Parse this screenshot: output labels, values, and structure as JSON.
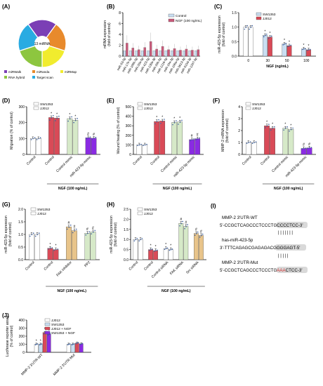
{
  "colors": {
    "blue": "#c9def2",
    "red": "#d94a57",
    "green": "#d6e9c8",
    "purple": "#8a2be2",
    "pink": "#c95a7a",
    "axis": "#000000",
    "dot": "#3a5fa0"
  },
  "chart_data": [
    {
      "panel": "A",
      "type": "pie",
      "title": "(A)",
      "center_label": "13 miRNA",
      "slices": [
        {
          "name": "miRWalk",
          "value": 1,
          "color": "#7b3fb5"
        },
        {
          "name": "miRanda",
          "value": 1,
          "color": "#e88a2c"
        },
        {
          "name": "miRMap",
          "value": 1,
          "color": "#f1ec2e"
        },
        {
          "name": "RNA hybrid",
          "value": 1,
          "color": "#8dc63f"
        },
        {
          "name": "Target scan",
          "value": 1,
          "color": "#29abe2"
        }
      ]
    },
    {
      "panel": "B",
      "type": "bar",
      "title": "(B)",
      "ylabel": "mRNA expression\n(fold of control)",
      "ylim": [
        0,
        8
      ],
      "yticks": [
        0,
        2,
        4,
        6,
        8
      ],
      "categories": [
        "miR-93-5p",
        "miR-17b-5p",
        "miR-106b-5p",
        "miR-20a-5p",
        "miR-423-5p",
        "miR-130a-3p",
        "miR-20b-5p",
        "miR-1216-5p",
        "miR-19a-3p",
        "miR-106a-5p",
        "miR-3613-3p",
        "miR-519d-3p",
        "miR-1297-5p"
      ],
      "series": [
        {
          "name": "Control",
          "values": [
            1,
            1,
            1,
            1,
            1,
            1,
            1,
            1,
            1,
            1,
            1,
            1,
            1
          ]
        },
        {
          "name": "NGF (100 ng/mL)",
          "values": [
            2.4,
            1.5,
            1.2,
            1.6,
            2.7,
            1.3,
            1.8,
            1.2,
            1.4,
            1.1,
            1.3,
            1.1,
            1.2
          ]
        }
      ]
    },
    {
      "panel": "C",
      "type": "bar",
      "title": "(C)",
      "ylabel": "miR-423-5p expression\n(fold of control)",
      "xlabel": "NGF (ng/mL)",
      "ylim": [
        0,
        1.5
      ],
      "yticks": [
        0.0,
        0.5,
        1.0,
        1.5
      ],
      "categories": [
        "0",
        "30",
        "50",
        "100"
      ],
      "series": [
        {
          "name": "SW1353",
          "values": [
            1.0,
            0.72,
            0.42,
            0.25
          ]
        },
        {
          "name": "JJ012",
          "values": [
            1.0,
            0.66,
            0.36,
            0.22
          ]
        }
      ],
      "significance": [
        "",
        "*",
        "*",
        "*"
      ]
    },
    {
      "panel": "D",
      "type": "bar",
      "title": "(D)",
      "ylabel": "Migration (% of control)",
      "xlabel": "NGF (100 ng/mL)",
      "ylim": [
        0,
        300
      ],
      "yticks": [
        0,
        100,
        200,
        300
      ],
      "categories": [
        "Control",
        "Control",
        "Control mimic",
        "miR-423-5p mimic"
      ],
      "series": [
        {
          "name": "SW1353",
          "values": [
            100,
            232,
            225,
            105
          ]
        },
        {
          "name": "JJ012",
          "values": [
            100,
            228,
            215,
            102
          ]
        }
      ],
      "significance": [
        "",
        "*",
        "*",
        "#"
      ]
    },
    {
      "panel": "E",
      "type": "bar",
      "title": "(E)",
      "ylabel": "Wound healing (% of control)",
      "xlabel": "NGF (100 ng/mL)",
      "ylim": [
        0,
        500
      ],
      "yticks": [
        0,
        100,
        200,
        300,
        400,
        500
      ],
      "categories": [
        "Control",
        "Control",
        "Control mimic",
        "miR-423-5p mimic"
      ],
      "series": [
        {
          "name": "SW1353",
          "values": [
            100,
            345,
            335,
            155
          ]
        },
        {
          "name": "JJ012",
          "values": [
            100,
            350,
            340,
            165
          ]
        }
      ],
      "significance": [
        "",
        "*",
        "*",
        "#"
      ]
    },
    {
      "panel": "F",
      "type": "bar",
      "title": "(F)",
      "ylabel": "MMP-2 mRNA expression\n(fold of control)",
      "xlabel": "NGF (100 ng/mL)",
      "ylim": [
        0,
        4
      ],
      "yticks": [
        0,
        1,
        2,
        3,
        4
      ],
      "categories": [
        "Control",
        "Control",
        "Control mimic",
        "miR-423-5p mimic"
      ],
      "series": [
        {
          "name": "SW1353",
          "values": [
            1.0,
            2.4,
            2.2,
            0.5
          ]
        },
        {
          "name": "JJ012",
          "values": [
            1.0,
            2.2,
            2.1,
            0.55
          ]
        }
      ],
      "significance": [
        "",
        "*",
        "*",
        "#"
      ]
    },
    {
      "panel": "G",
      "type": "bar",
      "title": "(G)",
      "ylabel": "miR-423-5p expression\n(fold of control)",
      "xlabel": "NGF (100 ng/mL)",
      "ylim": [
        0,
        2.0
      ],
      "yticks": [
        0.0,
        0.5,
        1.0,
        1.5,
        2.0
      ],
      "categories": [
        "Control",
        "Control",
        "FAK inhibitor",
        "PP2"
      ],
      "series": [
        {
          "name": "SW1353",
          "values": [
            1.0,
            0.45,
            1.3,
            1.05
          ]
        },
        {
          "name": "JJ012",
          "values": [
            1.0,
            0.4,
            1.15,
            1.1
          ]
        }
      ],
      "significance": [
        "",
        "*",
        "#",
        "#"
      ]
    },
    {
      "panel": "H",
      "type": "bar",
      "title": "(H)",
      "ylabel": "miR-423-5p expression\n(fold of control)",
      "xlabel": "NGF (100 ng/mL)",
      "ylim": [
        0,
        2.5
      ],
      "yticks": [
        0.0,
        0.5,
        1.0,
        1.5,
        2.0,
        2.5
      ],
      "categories": [
        "Control",
        "Control",
        "Control siRNA",
        "FAK siRNA",
        "Src siRNA"
      ],
      "series": [
        {
          "name": "SW1353",
          "values": [
            1.0,
            0.5,
            0.55,
            1.8,
            1.3
          ]
        },
        {
          "name": "JJ012",
          "values": [
            1.0,
            0.45,
            0.5,
            1.65,
            1.2
          ]
        }
      ],
      "significance": [
        "",
        "*",
        "*",
        "#",
        "#"
      ]
    },
    {
      "panel": "J",
      "type": "bar",
      "title": "(J)",
      "ylabel": "Luciferase reporter assay\n(% of control)",
      "ylim": [
        0,
        400
      ],
      "yticks": [
        0,
        100,
        200,
        300,
        400
      ],
      "categories": [
        "MMP-2 3'UTR-WT",
        "MMP-2 3'UTR-Mut"
      ],
      "series": [
        {
          "name": "JJ012",
          "values": [
            100,
            100
          ]
        },
        {
          "name": "SW1353",
          "values": [
            100,
            100
          ]
        },
        {
          "name": "JJ012 + NGF",
          "values": [
            245,
            115
          ]
        },
        {
          "name": "SW1353 + NGF",
          "values": [
            225,
            105
          ]
        }
      ],
      "significance": [
        "*",
        ""
      ]
    }
  ],
  "panel_i": {
    "label": "(I)",
    "wt_title": "MMP-2 3'UTR-WT",
    "wt_seq": "5'-CCGCTCAGCCCTCCCTGCCCCTCC-3'",
    "bars_top": "| | | | | | |",
    "mirna_title": "has-miR-423-5p",
    "mirna_seq": "3'-TTTCAGAGCGAGAGACGGGGAGT-5'",
    "bars_bottom": "|   | | | |",
    "mut_title": "MMP-2 3'UTR-Mut",
    "mut_seq_a": "5'-CCGCTCAGCCCTCCCTG",
    "mut_seq_b": "AAA",
    "mut_seq_c": "CTCC-3'"
  }
}
